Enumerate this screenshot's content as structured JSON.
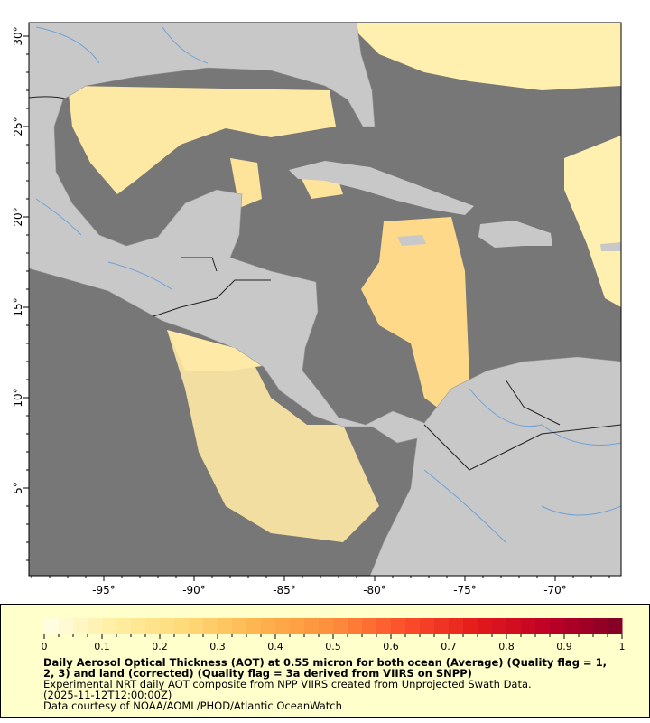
{
  "map": {
    "longitude_ticks": [
      "-95°",
      "-90°",
      "-85°",
      "-80°",
      "-75°",
      "-70°"
    ],
    "longitude_values": [
      -95,
      -90,
      -85,
      -80,
      -75,
      -70
    ],
    "latitude_ticks": [
      "30°",
      "25°",
      "20°",
      "15°",
      "10°",
      "5°"
    ],
    "latitude_values": [
      30,
      25,
      20,
      15,
      10,
      5
    ],
    "lon_range": [
      -99.15,
      -66.35
    ],
    "lat_range": [
      0.15,
      30.75
    ],
    "colors": {
      "ocean_nodata": "#777777",
      "land": "#c8c8c8",
      "rivers": "#6fa1d8",
      "borders": "#222222",
      "frame": "#000000"
    }
  },
  "colorbar": {
    "range": [
      0,
      1
    ],
    "tick_labels": [
      "0",
      "0.1",
      "0.2",
      "0.3",
      "0.4",
      "0.5",
      "0.6",
      "0.7",
      "0.8",
      "0.9",
      "1"
    ],
    "palette": [
      "#ffffe6",
      "#ffeda0",
      "#fed976",
      "#feb24c",
      "#fd8d3c",
      "#fc4e2a",
      "#e31a1c",
      "#bd0026",
      "#800026"
    ],
    "steps": 40
  },
  "caption": {
    "title_line1": "Daily Aerosol Optical Thickness (AOT) at 0.55 micron for both ocean (Average) (Quality flag = 1,",
    "title_line2": "2, 3) and land (corrected) (Quality flag = 3a derived from VIIRS on SNPP)",
    "subtitle": "Experimental NRT daily AOT composite from NPP VIIRS created from Unprojected Swath Data.",
    "time": "(2025-11-12T12:00:00Z)",
    "credit": "Data courtesy of NOAA/AOML/PHOD/Atlantic OceanWatch"
  }
}
